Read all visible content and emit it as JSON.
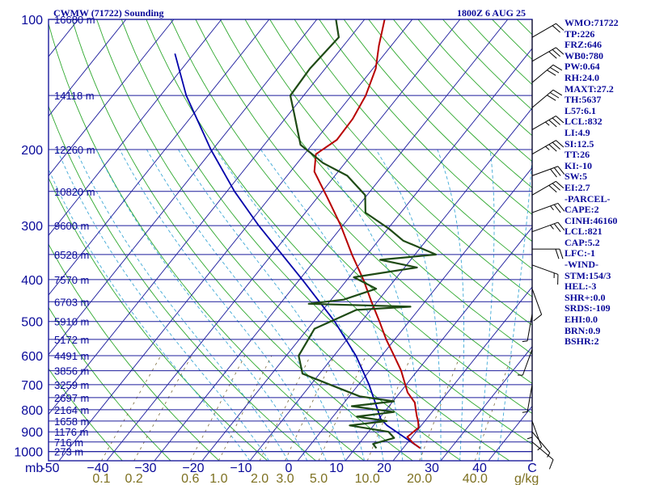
{
  "title_left": "CWMW (71722) Sounding",
  "title_right": "1800Z  6 AUG 25",
  "chart_data": {
    "type": "skew-t",
    "pressure_levels": [
      100,
      200,
      300,
      400,
      500,
      600,
      700,
      800,
      900,
      1000
    ],
    "pressure_axis_label": "mb",
    "temperature_ticks": [
      -50,
      -40,
      -30,
      -20,
      -10,
      0,
      10,
      20,
      30,
      40
    ],
    "temperature_tick_labels": [
      "-50",
      "−40",
      "−30",
      "−20",
      "−10",
      "0",
      "10",
      "20",
      "30",
      "40"
    ],
    "temperature_axis_end_label": "C",
    "mixing_ratio_ticks": [
      0.1,
      0.2,
      0.6,
      1.0,
      2.0,
      3.0,
      5.0,
      10.0,
      20.0,
      40.0
    ],
    "mixing_ratio_tick_labels": [
      "0.1",
      "0.2",
      "0.6",
      "1.0",
      "2.0",
      "3.0",
      "5.0",
      "10.0",
      "20.0",
      "40.0"
    ],
    "mixing_ratio_unit": "g/kg",
    "height_labels": [
      {
        "p": 100,
        "label": "16680 m"
      },
      {
        "p": 150,
        "label": "14118 m"
      },
      {
        "p": 200,
        "label": "12260 m"
      },
      {
        "p": 250,
        "label": "10820 m"
      },
      {
        "p": 300,
        "label": "9600 m"
      },
      {
        "p": 350,
        "label": "8528 m"
      },
      {
        "p": 400,
        "label": "7570 m"
      },
      {
        "p": 450,
        "label": "6703 m"
      },
      {
        "p": 500,
        "label": "5910 m"
      },
      {
        "p": 550,
        "label": "5172 m"
      },
      {
        "p": 600,
        "label": "4491 m"
      },
      {
        "p": 650,
        "label": "3856 m"
      },
      {
        "p": 700,
        "label": "3259 m"
      },
      {
        "p": 750,
        "label": "2697 m"
      },
      {
        "p": 800,
        "label": "2164 m"
      },
      {
        "p": 850,
        "label": "1658 m"
      },
      {
        "p": 900,
        "label": "1176 m"
      },
      {
        "p": 950,
        "label": "716 m"
      },
      {
        "p": 1000,
        "label": "273 m"
      }
    ],
    "temperature_profile": [
      {
        "p": 982,
        "t": 23.6
      },
      {
        "p": 955,
        "t": 21.2
      },
      {
        "p": 925,
        "t": 19.0
      },
      {
        "p": 880,
        "t": 19.8
      },
      {
        "p": 850,
        "t": 18.6
      },
      {
        "p": 830,
        "t": 17.6
      },
      {
        "p": 800,
        "t": 16.2
      },
      {
        "p": 770,
        "t": 14.8
      },
      {
        "p": 730,
        "t": 11.6
      },
      {
        "p": 700,
        "t": 9.8
      },
      {
        "p": 650,
        "t": 6.6
      },
      {
        "p": 600,
        "t": 2.6
      },
      {
        "p": 550,
        "t": -1.8
      },
      {
        "p": 500,
        "t": -6.2
      },
      {
        "p": 450,
        "t": -11.2
      },
      {
        "p": 400,
        "t": -16.6
      },
      {
        "p": 350,
        "t": -23.2
      },
      {
        "p": 300,
        "t": -30.4
      },
      {
        "p": 260,
        "t": -37.6
      },
      {
        "p": 225,
        "t": -45.0
      },
      {
        "p": 205,
        "t": -47.6
      },
      {
        "p": 190,
        "t": -45.6
      },
      {
        "p": 170,
        "t": -45.8
      },
      {
        "p": 150,
        "t": -47.0
      },
      {
        "p": 130,
        "t": -49.4
      },
      {
        "p": 115,
        "t": -52.6
      },
      {
        "p": 100,
        "t": -55.8
      }
    ],
    "dewpoint_profile": [
      {
        "p": 982,
        "t": 14.4
      },
      {
        "p": 960,
        "t": 13.0
      },
      {
        "p": 930,
        "t": 16.4
      },
      {
        "p": 900,
        "t": 14.2
      },
      {
        "p": 870,
        "t": 5.0
      },
      {
        "p": 850,
        "t": 12.0
      },
      {
        "p": 830,
        "t": 5.0
      },
      {
        "p": 810,
        "t": 12.0
      },
      {
        "p": 785,
        "t": 2.2
      },
      {
        "p": 765,
        "t": 10.2
      },
      {
        "p": 745,
        "t": 2.2
      },
      {
        "p": 700,
        "t": -6.0
      },
      {
        "p": 660,
        "t": -13.6
      },
      {
        "p": 600,
        "t": -17.4
      },
      {
        "p": 520,
        "t": -18.6
      },
      {
        "p": 470,
        "t": -13.0
      },
      {
        "p": 462,
        "t": -2.2
      },
      {
        "p": 455,
        "t": -24.0
      },
      {
        "p": 445,
        "t": -17.4
      },
      {
        "p": 420,
        "t": -12.4
      },
      {
        "p": 395,
        "t": -19.0
      },
      {
        "p": 375,
        "t": -7.4
      },
      {
        "p": 360,
        "t": -16.4
      },
      {
        "p": 350,
        "t": -5.6
      },
      {
        "p": 325,
        "t": -14.8
      },
      {
        "p": 305,
        "t": -19.8
      },
      {
        "p": 280,
        "t": -27.4
      },
      {
        "p": 255,
        "t": -30.4
      },
      {
        "p": 230,
        "t": -37.4
      },
      {
        "p": 215,
        "t": -44.6
      },
      {
        "p": 195,
        "t": -52.4
      },
      {
        "p": 165,
        "t": -59.0
      },
      {
        "p": 150,
        "t": -62.8
      },
      {
        "p": 130,
        "t": -63.2
      },
      {
        "p": 110,
        "t": -62.4
      },
      {
        "p": 100,
        "t": -66.0
      }
    ],
    "parcel_profile": [
      {
        "p": 982,
        "t": 23.6
      },
      {
        "p": 870,
        "t": 12.8
      },
      {
        "p": 840,
        "t": 10.4
      },
      {
        "p": 700,
        "t": 2.2
      },
      {
        "p": 600,
        "t": -5.4
      },
      {
        "p": 500,
        "t": -15.6
      },
      {
        "p": 400,
        "t": -29.4
      },
      {
        "p": 300,
        "t": -47.6
      },
      {
        "p": 250,
        "t": -58.4
      },
      {
        "p": 200,
        "t": -70.4
      },
      {
        "p": 150,
        "t": -84.6
      },
      {
        "p": 120,
        "t": -94.0
      }
    ],
    "wind_barbs": [
      {
        "p": 110,
        "dir": 60,
        "spd": 20
      },
      {
        "p": 125,
        "dir": 60,
        "spd": 30
      },
      {
        "p": 140,
        "dir": 50,
        "spd": 30
      },
      {
        "p": 160,
        "dir": 50,
        "spd": 30
      },
      {
        "p": 180,
        "dir": 60,
        "spd": 35
      },
      {
        "p": 205,
        "dir": 60,
        "spd": 35
      },
      {
        "p": 230,
        "dir": 70,
        "spd": 30
      },
      {
        "p": 255,
        "dir": 60,
        "spd": 30
      },
      {
        "p": 280,
        "dir": 70,
        "spd": 25
      },
      {
        "p": 310,
        "dir": 70,
        "spd": 25
      },
      {
        "p": 340,
        "dir": 90,
        "spd": 20
      },
      {
        "p": 370,
        "dir": 110,
        "spd": 15
      },
      {
        "p": 420,
        "dir": 160,
        "spd": 10
      },
      {
        "p": 480,
        "dir": 190,
        "spd": 5
      },
      {
        "p": 580,
        "dir": 200,
        "spd": 5
      },
      {
        "p": 700,
        "dir": 190,
        "spd": 5
      },
      {
        "p": 800,
        "dir": 180,
        "spd": 5
      },
      {
        "p": 850,
        "dir": 160,
        "spd": 5
      },
      {
        "p": 900,
        "dir": 140,
        "spd": 5
      },
      {
        "p": 950,
        "dir": 130,
        "spd": 10
      }
    ]
  },
  "indices": [
    "WMO:71722",
    "TP:226",
    "FRZ:646",
    "WB0:780",
    "PW:0.64",
    "RH:24.0",
    "MAXT:27.2",
    "TH:5637",
    "L57:6.1",
    "LCL:832",
    "LI:4.9",
    "SI:12.5",
    "TT:26",
    "KI:-10",
    "SW:5",
    "EI:2.7",
    "-PARCEL-",
    "CAPE:2",
    "CINH:46160",
    "LCL:821",
    "CAP:5.2",
    "LFC:-1",
    "-WIND-",
    "STM:154/3",
    "HEL:-3",
    "SHR+:0.0",
    "SRDS:-109",
    "EHI:0.0",
    "BRN:0.9",
    "BSHR:2"
  ],
  "colors": {
    "frame": "#1c1c9c",
    "isobar": "#1c1c9c",
    "isotherm": "#1c1c9c",
    "dry_adiabat": "#2ea82e",
    "moist_adiabat": "#3fa9d6",
    "mixing_ratio": "#7a6a3a",
    "temperature": "#b80000",
    "dewpoint": "#1e4a14",
    "parcel": "#0000aa",
    "text": "#0a0a9a",
    "mixing_text": "#7d7020",
    "wind": "#000000"
  }
}
